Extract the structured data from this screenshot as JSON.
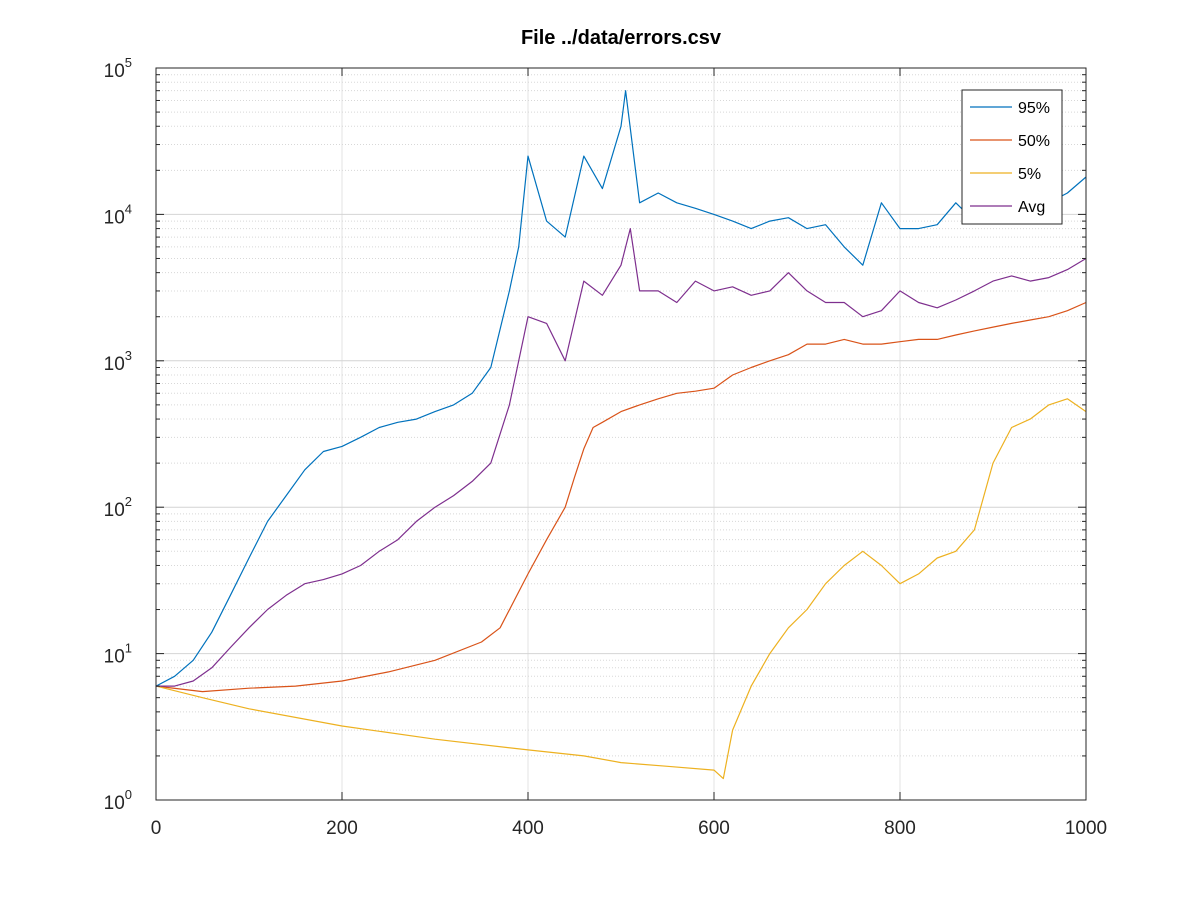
{
  "chart_data": {
    "type": "line",
    "title": "File ../data/errors.csv",
    "xlabel": "",
    "ylabel": "",
    "xlim": [
      0,
      1000
    ],
    "ylim": [
      1,
      100000
    ],
    "yscale": "log",
    "grid": true,
    "minor_grid": true,
    "legend_position": "top-right",
    "x_ticks": [
      "0",
      "200",
      "400",
      "600",
      "800",
      "1000"
    ],
    "y_ticks": [
      {
        "base": "10",
        "exp": "0"
      },
      {
        "base": "10",
        "exp": "1"
      },
      {
        "base": "10",
        "exp": "2"
      },
      {
        "base": "10",
        "exp": "3"
      },
      {
        "base": "10",
        "exp": "4"
      },
      {
        "base": "10",
        "exp": "5"
      }
    ],
    "series": [
      {
        "name": "95%",
        "color": "#0072BD",
        "points": [
          [
            0,
            6
          ],
          [
            20,
            7
          ],
          [
            40,
            9
          ],
          [
            60,
            14
          ],
          [
            80,
            25
          ],
          [
            100,
            45
          ],
          [
            120,
            80
          ],
          [
            140,
            120
          ],
          [
            160,
            180
          ],
          [
            180,
            240
          ],
          [
            200,
            260
          ],
          [
            220,
            300
          ],
          [
            240,
            350
          ],
          [
            260,
            380
          ],
          [
            280,
            400
          ],
          [
            300,
            450
          ],
          [
            320,
            500
          ],
          [
            340,
            600
          ],
          [
            360,
            900
          ],
          [
            380,
            3000
          ],
          [
            390,
            6000
          ],
          [
            400,
            25000
          ],
          [
            420,
            9000
          ],
          [
            440,
            7000
          ],
          [
            460,
            25000
          ],
          [
            480,
            15000
          ],
          [
            500,
            40000
          ],
          [
            505,
            70000
          ],
          [
            520,
            12000
          ],
          [
            540,
            14000
          ],
          [
            560,
            12000
          ],
          [
            580,
            11000
          ],
          [
            600,
            10000
          ],
          [
            620,
            9000
          ],
          [
            640,
            8000
          ],
          [
            660,
            9000
          ],
          [
            680,
            9500
          ],
          [
            700,
            8000
          ],
          [
            720,
            8500
          ],
          [
            740,
            6000
          ],
          [
            760,
            4500
          ],
          [
            780,
            12000
          ],
          [
            800,
            8000
          ],
          [
            820,
            8000
          ],
          [
            840,
            8500
          ],
          [
            860,
            12000
          ],
          [
            880,
            9000
          ],
          [
            900,
            10000
          ],
          [
            920,
            10500
          ],
          [
            940,
            11000
          ],
          [
            960,
            12000
          ],
          [
            980,
            14000
          ],
          [
            1000,
            18000
          ]
        ]
      },
      {
        "name": "50%",
        "color": "#D95319",
        "points": [
          [
            0,
            6
          ],
          [
            50,
            5.5
          ],
          [
            100,
            5.8
          ],
          [
            150,
            6
          ],
          [
            200,
            6.5
          ],
          [
            250,
            7.5
          ],
          [
            300,
            9
          ],
          [
            350,
            12
          ],
          [
            370,
            15
          ],
          [
            400,
            35
          ],
          [
            420,
            60
          ],
          [
            440,
            100
          ],
          [
            450,
            160
          ],
          [
            460,
            250
          ],
          [
            470,
            350
          ],
          [
            480,
            380
          ],
          [
            500,
            450
          ],
          [
            520,
            500
          ],
          [
            540,
            550
          ],
          [
            560,
            600
          ],
          [
            580,
            620
          ],
          [
            600,
            650
          ],
          [
            620,
            800
          ],
          [
            640,
            900
          ],
          [
            660,
            1000
          ],
          [
            680,
            1100
          ],
          [
            700,
            1300
          ],
          [
            720,
            1300
          ],
          [
            740,
            1400
          ],
          [
            760,
            1300
          ],
          [
            780,
            1300
          ],
          [
            800,
            1350
          ],
          [
            820,
            1400
          ],
          [
            840,
            1400
          ],
          [
            860,
            1500
          ],
          [
            880,
            1600
          ],
          [
            900,
            1700
          ],
          [
            920,
            1800
          ],
          [
            940,
            1900
          ],
          [
            960,
            2000
          ],
          [
            980,
            2200
          ],
          [
            1000,
            2500
          ]
        ]
      },
      {
        "name": "5%",
        "color": "#EDB120",
        "points": [
          [
            0,
            6
          ],
          [
            50,
            5
          ],
          [
            100,
            4.2
          ],
          [
            200,
            3.2
          ],
          [
            300,
            2.6
          ],
          [
            400,
            2.2
          ],
          [
            460,
            2
          ],
          [
            500,
            1.8
          ],
          [
            550,
            1.7
          ],
          [
            600,
            1.6
          ],
          [
            610,
            1.4
          ],
          [
            620,
            3
          ],
          [
            640,
            6
          ],
          [
            660,
            10
          ],
          [
            680,
            15
          ],
          [
            700,
            20
          ],
          [
            720,
            30
          ],
          [
            740,
            40
          ],
          [
            760,
            50
          ],
          [
            780,
            40
          ],
          [
            800,
            30
          ],
          [
            820,
            35
          ],
          [
            840,
            45
          ],
          [
            860,
            50
          ],
          [
            880,
            70
          ],
          [
            900,
            200
          ],
          [
            920,
            350
          ],
          [
            940,
            400
          ],
          [
            960,
            500
          ],
          [
            980,
            550
          ],
          [
            1000,
            450
          ]
        ]
      },
      {
        "name": "Avg",
        "color": "#7E2F8E",
        "points": [
          [
            0,
            6
          ],
          [
            20,
            6
          ],
          [
            40,
            6.5
          ],
          [
            60,
            8
          ],
          [
            80,
            11
          ],
          [
            100,
            15
          ],
          [
            120,
            20
          ],
          [
            140,
            25
          ],
          [
            160,
            30
          ],
          [
            180,
            32
          ],
          [
            200,
            35
          ],
          [
            220,
            40
          ],
          [
            240,
            50
          ],
          [
            260,
            60
          ],
          [
            280,
            80
          ],
          [
            300,
            100
          ],
          [
            320,
            120
          ],
          [
            340,
            150
          ],
          [
            360,
            200
          ],
          [
            380,
            500
          ],
          [
            400,
            2000
          ],
          [
            420,
            1800
          ],
          [
            440,
            1000
          ],
          [
            460,
            3500
          ],
          [
            480,
            2800
          ],
          [
            500,
            4500
          ],
          [
            510,
            8000
          ],
          [
            520,
            3000
          ],
          [
            540,
            3000
          ],
          [
            560,
            2500
          ],
          [
            580,
            3500
          ],
          [
            600,
            3000
          ],
          [
            620,
            3200
          ],
          [
            640,
            2800
          ],
          [
            660,
            3000
          ],
          [
            680,
            4000
          ],
          [
            700,
            3000
          ],
          [
            720,
            2500
          ],
          [
            740,
            2500
          ],
          [
            760,
            2000
          ],
          [
            780,
            2200
          ],
          [
            800,
            3000
          ],
          [
            820,
            2500
          ],
          [
            840,
            2300
          ],
          [
            860,
            2600
          ],
          [
            880,
            3000
          ],
          [
            900,
            3500
          ],
          [
            920,
            3800
          ],
          [
            940,
            3500
          ],
          [
            960,
            3700
          ],
          [
            980,
            4200
          ],
          [
            1000,
            5000
          ]
        ]
      }
    ]
  }
}
